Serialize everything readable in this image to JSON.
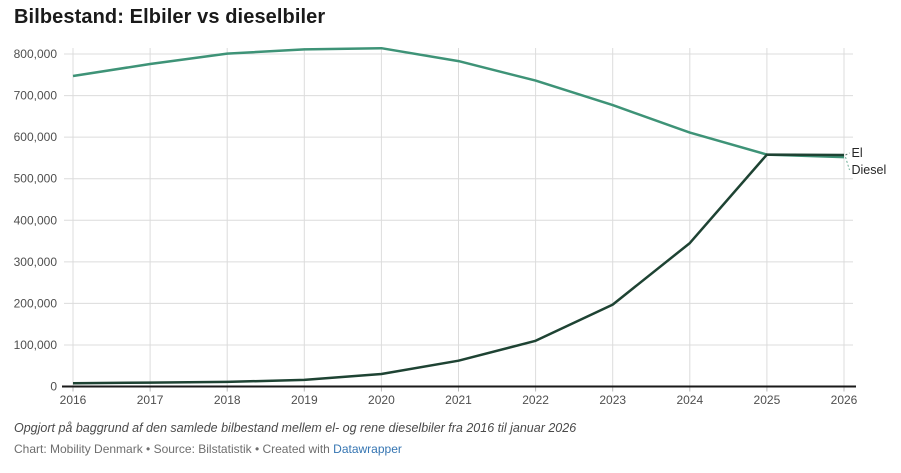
{
  "header": {
    "title": "Bilbestand: Elbiler vs dieselbiler"
  },
  "chart_data": {
    "type": "line",
    "title": "Bilbestand: Elbiler vs dieselbiler",
    "x": [
      2016,
      2017,
      2018,
      2019,
      2020,
      2021,
      2022,
      2023,
      2024,
      2025,
      2026
    ],
    "series": [
      {
        "name": "Diesel",
        "color": "#3e9377",
        "values": [
          747000,
          776000,
          801000,
          811000,
          814000,
          783000,
          736000,
          677000,
          611000,
          558000,
          552000
        ]
      },
      {
        "name": "El",
        "color": "#1e4333",
        "values": [
          8000,
          9500,
          11000,
          16000,
          30000,
          62000,
          110000,
          197000,
          345000,
          558000,
          557000
        ]
      }
    ],
    "ylim": [
      0,
      800000
    ],
    "y_tick_step": 100000,
    "y_tick_labels": [
      "0",
      "100,000",
      "200,000",
      "300,000",
      "400,000",
      "500,000",
      "600,000",
      "700,000",
      "800,000"
    ],
    "xlabel": "",
    "ylabel": "",
    "grid": true,
    "legend_position": "direct-end-labels",
    "end_labels": [
      "El",
      "Diesel"
    ]
  },
  "footer": {
    "note": "Opgjort på baggrund af den samlede bilbestand mellem el- og rene dieselbiler fra 2016 til januar 2026",
    "credit": "Chart: Mobility Denmark • Source: Bilstatistik • Created with ",
    "link_text": "Datawrapper",
    "link_color": "#3575b2"
  },
  "colors": {
    "grid": "#dcdcdc",
    "axis": "#1a1a1a",
    "tick": "#b9b9b9",
    "diesel_line": "#3e9377",
    "el_line": "#1e4333"
  }
}
